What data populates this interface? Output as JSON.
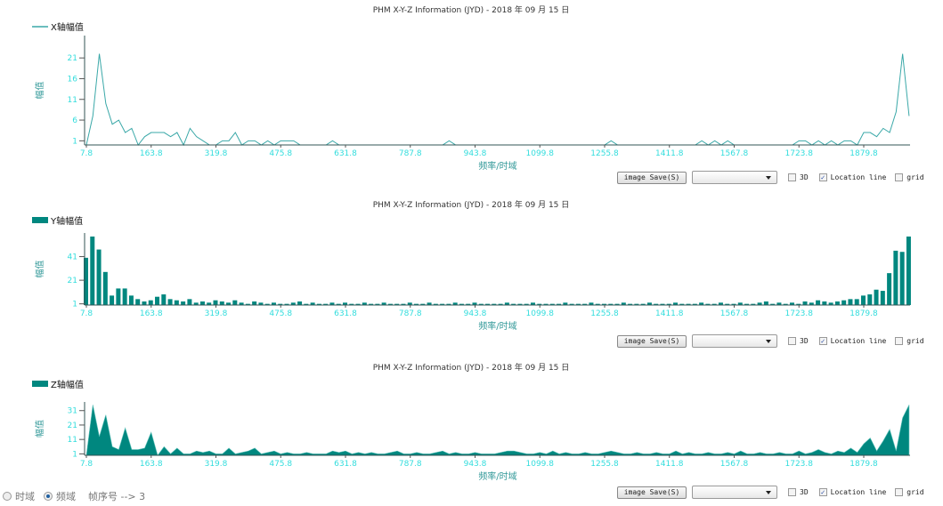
{
  "colors": {
    "line": "#3aa8a8",
    "fill": "#00877f",
    "tick": "#33dddd",
    "axis": "#335555"
  },
  "chart_data": [
    {
      "type": "line",
      "title": "PHM X-Y-Z Information (JYD) - 2018 年 09 月 15 日",
      "legend": "X轴幅值",
      "ylabel": "幅值",
      "xlabel": "频率/时域",
      "x_start": 7.8,
      "x_step": 15.6,
      "xticks": [
        7.8,
        163.8,
        319.8,
        475.8,
        631.8,
        787.8,
        943.8,
        1099.8,
        1255.8,
        1411.8,
        1567.8,
        1723.8,
        1879.8
      ],
      "yticks": [
        1,
        6,
        11,
        16,
        21
      ],
      "ylim": [
        0,
        26.4
      ],
      "values": [
        0,
        7,
        22,
        10,
        5,
        6,
        3,
        4,
        0,
        2,
        3,
        3,
        3,
        2,
        3,
        0,
        4,
        2,
        1,
        0,
        0,
        1,
        1,
        3,
        0,
        1,
        1,
        0,
        1,
        0,
        1,
        1,
        1,
        0,
        0,
        0,
        0,
        0,
        1,
        0,
        0,
        0,
        0,
        0,
        0,
        0,
        0,
        0,
        0,
        0,
        0,
        0,
        0,
        0,
        0,
        0,
        1,
        0,
        0,
        0,
        0,
        0,
        0,
        0,
        0,
        0,
        0,
        0,
        0,
        0,
        0,
        0,
        0,
        0,
        0,
        0,
        0,
        0,
        0,
        0,
        0,
        1,
        0,
        0,
        0,
        0,
        0,
        0,
        0,
        0,
        0,
        0,
        0,
        0,
        0,
        1,
        0,
        1,
        0,
        1,
        0,
        0,
        0,
        0,
        0,
        0,
        0,
        0,
        0,
        0,
        1,
        1,
        0,
        1,
        0,
        1,
        0,
        1,
        1,
        0,
        3,
        3,
        2,
        4,
        3,
        8,
        22,
        7
      ]
    },
    {
      "type": "bar",
      "title": "PHM X-Y-Z Information (JYD) - 2018 年 09 月 15 日",
      "legend": "Y轴幅值",
      "ylabel": "幅值",
      "xlabel": "频率/时域",
      "x_start": 7.8,
      "x_step": 15.6,
      "xticks": [
        7.8,
        163.8,
        319.8,
        475.8,
        631.8,
        787.8,
        943.8,
        1099.8,
        1255.8,
        1411.8,
        1567.8,
        1723.8,
        1879.8
      ],
      "yticks": [
        1,
        21,
        41
      ],
      "ylim": [
        0,
        61
      ],
      "values": [
        40,
        58,
        47,
        28,
        8,
        14,
        14,
        8,
        5,
        3,
        4,
        7,
        9,
        5,
        4,
        3,
        5,
        2,
        3,
        2,
        4,
        3,
        2,
        4,
        2,
        1,
        3,
        2,
        1,
        2,
        1,
        1,
        2,
        3,
        1,
        2,
        1,
        1,
        2,
        1,
        2,
        1,
        1,
        2,
        1,
        1,
        2,
        1,
        1,
        1,
        2,
        1,
        1,
        2,
        1,
        1,
        1,
        2,
        1,
        1,
        2,
        1,
        1,
        1,
        1,
        2,
        1,
        1,
        1,
        2,
        1,
        1,
        1,
        1,
        2,
        1,
        1,
        1,
        2,
        1,
        1,
        1,
        1,
        2,
        1,
        1,
        1,
        2,
        1,
        1,
        1,
        2,
        1,
        1,
        1,
        2,
        1,
        1,
        2,
        1,
        1,
        2,
        1,
        1,
        2,
        3,
        1,
        2,
        1,
        2,
        1,
        3,
        2,
        4,
        3,
        2,
        3,
        4,
        5,
        5,
        8,
        9,
        13,
        12,
        27,
        46,
        45,
        58
      ]
    },
    {
      "type": "area",
      "title": "PHM X-Y-Z Information (JYD) - 2018 年 09 月 15 日",
      "legend": "Z轴幅值",
      "ylabel": "幅值",
      "xlabel": "频率/时域",
      "x_start": 7.8,
      "x_step": 15.6,
      "xticks": [
        7.8,
        163.8,
        319.8,
        475.8,
        631.8,
        787.8,
        943.8,
        1099.8,
        1255.8,
        1411.8,
        1567.8,
        1723.8,
        1879.8
      ],
      "yticks": [
        1,
        11,
        21,
        31
      ],
      "ylim": [
        0,
        37
      ],
      "values": [
        0,
        35,
        13,
        28,
        6,
        4,
        19,
        4,
        4,
        5,
        16,
        0,
        6,
        1,
        5,
        1,
        1,
        3,
        2,
        3,
        1,
        1,
        5,
        1,
        2,
        3,
        5,
        1,
        2,
        3,
        1,
        2,
        1,
        1,
        2,
        1,
        1,
        1,
        3,
        2,
        3,
        1,
        2,
        1,
        2,
        1,
        1,
        2,
        3,
        1,
        1,
        2,
        1,
        1,
        2,
        3,
        1,
        2,
        1,
        1,
        2,
        1,
        1,
        1,
        2,
        3,
        3,
        2,
        1,
        1,
        2,
        1,
        3,
        1,
        2,
        1,
        1,
        2,
        1,
        1,
        2,
        3,
        2,
        1,
        1,
        2,
        1,
        1,
        2,
        1,
        1,
        3,
        1,
        2,
        1,
        1,
        2,
        1,
        1,
        2,
        1,
        3,
        1,
        1,
        2,
        1,
        1,
        2,
        1,
        1,
        3,
        1,
        2,
        4,
        2,
        1,
        3,
        2,
        5,
        2,
        8,
        12,
        3,
        10,
        18,
        3,
        26,
        35
      ]
    }
  ],
  "controls": {
    "save_label": "image Save(S)",
    "select_value": "",
    "cb_3d": "3D",
    "cb_location": "Location line",
    "cb_grid": "grid",
    "location_checked": true
  },
  "bottom": {
    "time_label": "时域",
    "freq_label": "频域",
    "frame_text": "帧序号 --> 3",
    "selected": "频域"
  }
}
